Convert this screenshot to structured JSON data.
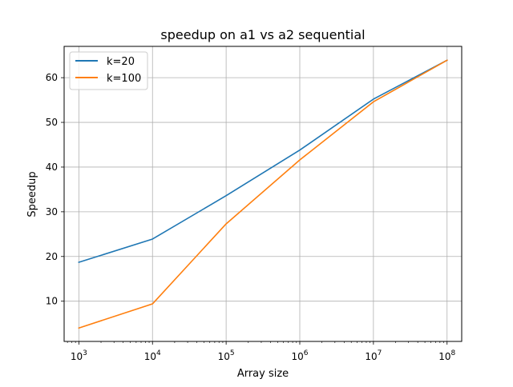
{
  "chart_data": {
    "type": "line",
    "title": "speedup on a1 vs a2 sequential",
    "xlabel": "Array size",
    "ylabel": "Speedup",
    "xscale": "log",
    "x": [
      1000,
      10000,
      100000,
      1000000,
      10000000,
      100000000
    ],
    "xlim": [
      631,
      158000000
    ],
    "ylim": [
      1.0,
      67.0
    ],
    "xticks": [
      {
        "value": 1000,
        "base": "10",
        "exp": "3"
      },
      {
        "value": 10000,
        "base": "10",
        "exp": "4"
      },
      {
        "value": 100000,
        "base": "10",
        "exp": "5"
      },
      {
        "value": 1000000,
        "base": "10",
        "exp": "6"
      },
      {
        "value": 10000000,
        "base": "10",
        "exp": "7"
      },
      {
        "value": 100000000,
        "base": "10",
        "exp": "8"
      }
    ],
    "yticks": [
      10,
      20,
      30,
      40,
      50,
      60
    ],
    "grid": true,
    "legend_position": "upper-left",
    "series": [
      {
        "name": "k=20",
        "color": "#1f77b4",
        "values": [
          18.7,
          23.9,
          33.6,
          43.8,
          55.2,
          63.9
        ]
      },
      {
        "name": "k=100",
        "color": "#ff7f0e",
        "values": [
          4.0,
          9.4,
          27.3,
          41.6,
          54.6,
          63.9
        ]
      }
    ]
  }
}
